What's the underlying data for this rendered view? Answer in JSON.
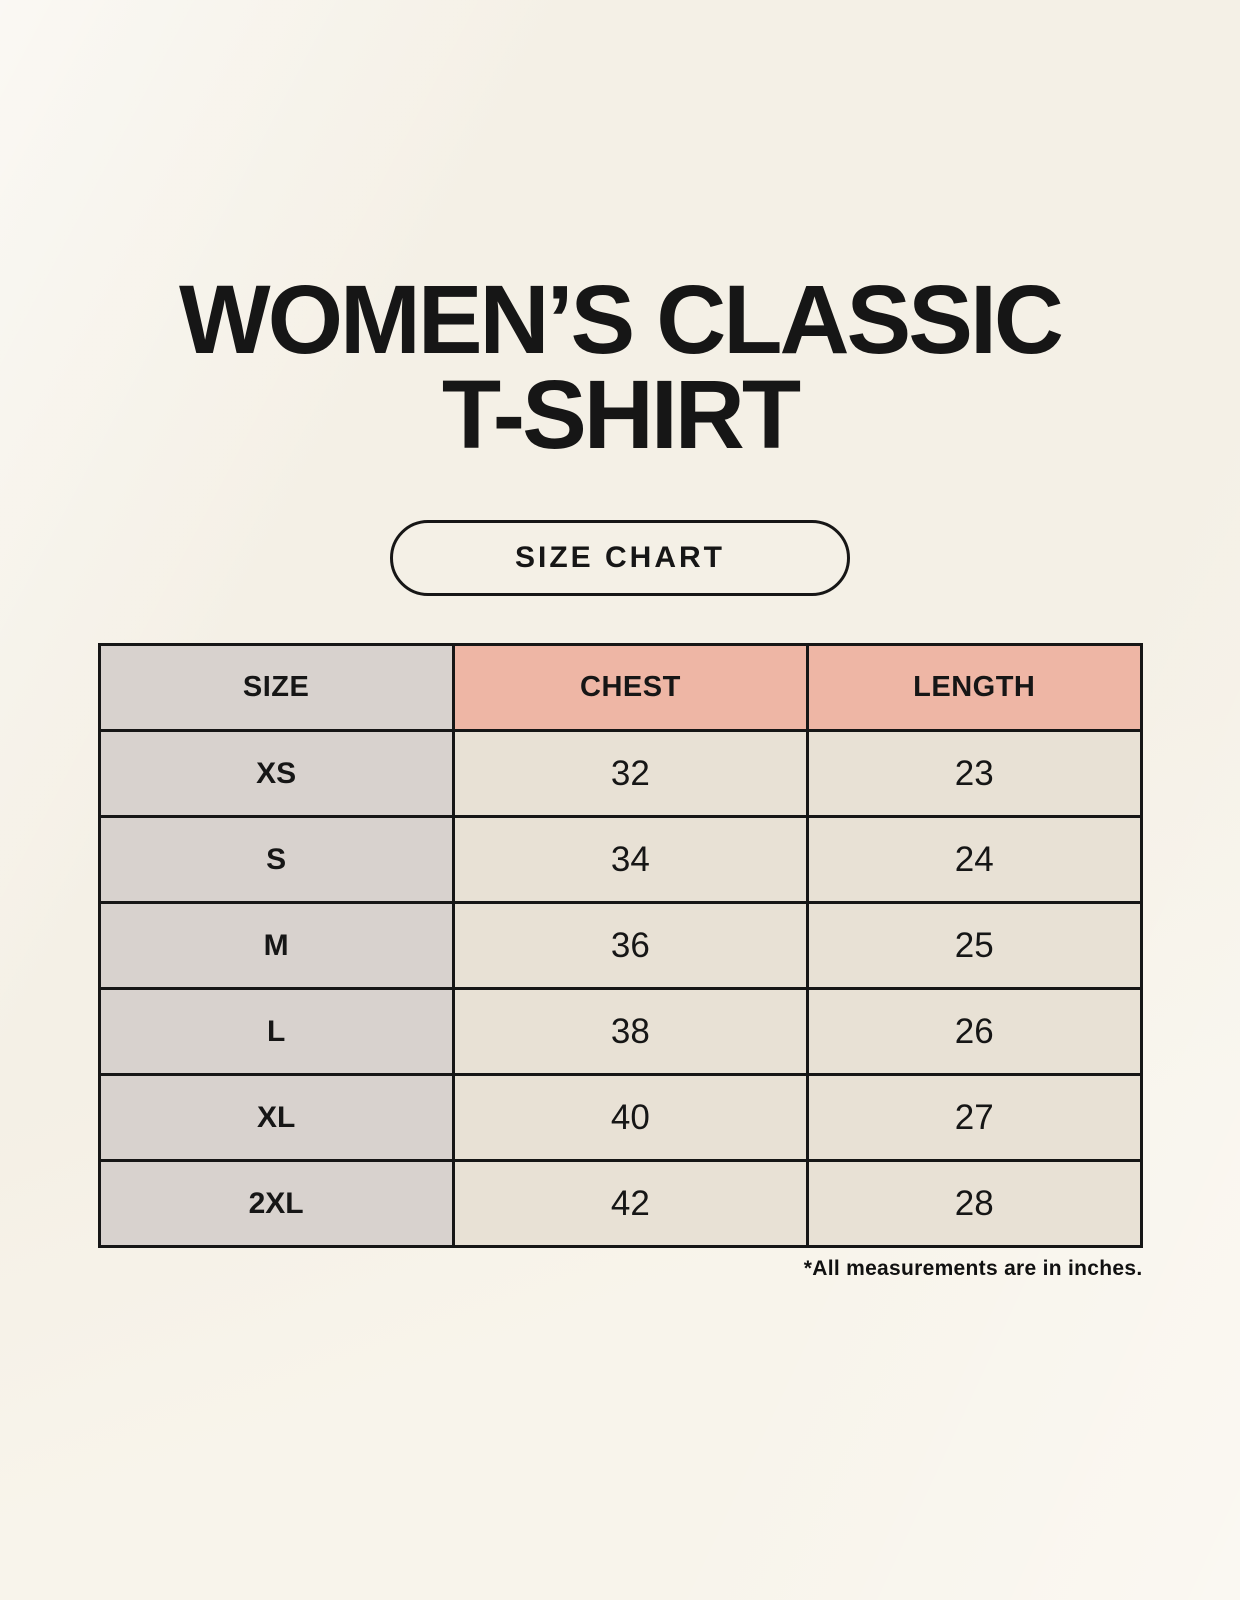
{
  "title": {
    "line1": "WOMEN’S CLASSIC",
    "line2": "T-SHIRT"
  },
  "size_chart_button": {
    "label": "SIZE CHART"
  },
  "table": {
    "headers": [
      "SIZE",
      "CHEST",
      "LENGTH"
    ],
    "rows": [
      {
        "size": "XS",
        "chest": "32",
        "length": "23"
      },
      {
        "size": "S",
        "chest": "34",
        "length": "24"
      },
      {
        "size": "M",
        "chest": "36",
        "length": "25"
      },
      {
        "size": "L",
        "chest": "38",
        "length": "26"
      },
      {
        "size": "XL",
        "chest": "40",
        "length": "27"
      },
      {
        "size": "2XL",
        "chest": "42",
        "length": "28"
      }
    ]
  },
  "footnote": "*All measurements are in inches.",
  "colors": {
    "page_background": "#f8f4eb",
    "header_pink": "#eeb6a5",
    "size_column_gray": "#d8d2ce",
    "value_cell_cream": "#e8e1d5",
    "border_black": "#161616"
  },
  "chart_data": {
    "type": "table",
    "title": "WOMEN’S CLASSIC T-SHIRT — SIZE CHART",
    "columns": [
      "SIZE",
      "CHEST",
      "LENGTH"
    ],
    "rows": [
      [
        "XS",
        32,
        23
      ],
      [
        "S",
        34,
        24
      ],
      [
        "M",
        36,
        25
      ],
      [
        "L",
        38,
        26
      ],
      [
        "XL",
        40,
        27
      ],
      [
        "2XL",
        42,
        28
      ]
    ],
    "units": "inches",
    "notes": "*All measurements are in inches."
  }
}
